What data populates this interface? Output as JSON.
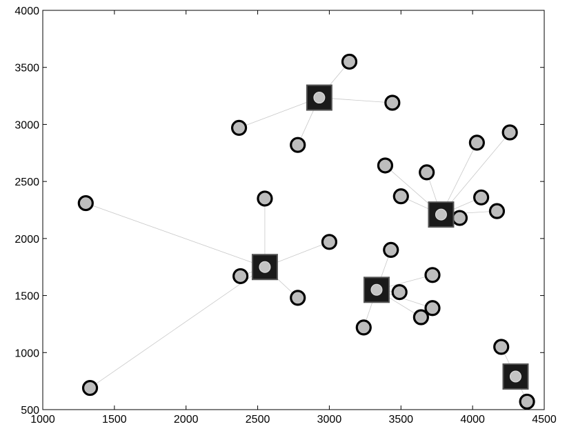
{
  "chart_data": {
    "type": "scatter",
    "title": "",
    "xlabel": "",
    "ylabel": "",
    "xlim": [
      1000,
      4500
    ],
    "ylim": [
      500,
      4000
    ],
    "x_ticks": [
      1000,
      1500,
      2000,
      2500,
      3000,
      3500,
      4000,
      4500
    ],
    "y_ticks": [
      500,
      1000,
      1500,
      2000,
      2500,
      3000,
      3500,
      4000
    ],
    "grid": false,
    "legend": "none",
    "colors": {
      "node_fill": "#bdbdbd",
      "node_stroke": "#000000",
      "center_fill": "#1a1a1a",
      "link": "#c8c8c8"
    },
    "clusters": [
      {
        "center": [
          2930,
          3235
        ],
        "members": [
          [
            3140,
            3550
          ],
          [
            3440,
            3190
          ],
          [
            2370,
            2970
          ],
          [
            2780,
            2820
          ]
        ]
      },
      {
        "center": [
          3780,
          2210
        ],
        "members": [
          [
            3390,
            2640
          ],
          [
            3680,
            2580
          ],
          [
            4030,
            2840
          ],
          [
            4260,
            2930
          ],
          [
            3500,
            2370
          ],
          [
            4060,
            2360
          ],
          [
            4170,
            2240
          ],
          [
            3910,
            2180
          ]
        ]
      },
      {
        "center": [
          2550,
          1750
        ],
        "members": [
          [
            1300,
            2310
          ],
          [
            2550,
            2350
          ],
          [
            3000,
            1970
          ],
          [
            2380,
            1670
          ],
          [
            2780,
            1480
          ],
          [
            1330,
            690
          ]
        ]
      },
      {
        "center": [
          3330,
          1550
        ],
        "members": [
          [
            3430,
            1900
          ],
          [
            3720,
            1680
          ],
          [
            3490,
            1530
          ],
          [
            3720,
            1390
          ],
          [
            3640,
            1310
          ],
          [
            3240,
            1220
          ]
        ]
      },
      {
        "center": [
          4300,
          790
        ],
        "members": [
          [
            4200,
            1050
          ],
          [
            4380,
            570
          ]
        ]
      }
    ]
  }
}
